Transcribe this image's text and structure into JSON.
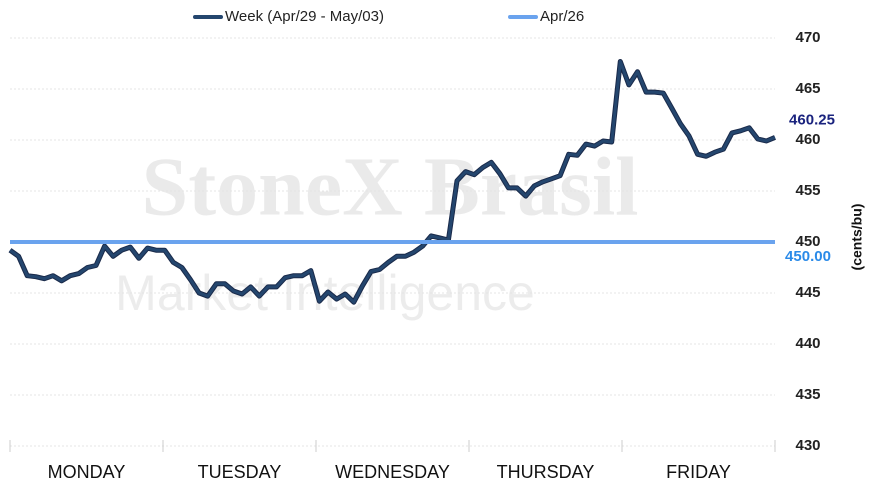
{
  "chart_data": {
    "type": "line",
    "x_axis_labels": [
      "MONDAY",
      "TUESDAY",
      "WEDNESDAY",
      "THURSDAY",
      "FRIDAY"
    ],
    "y_axis_label": "(cents/bu)",
    "watermark": [
      "StoneX Brasil",
      "Market Intelligence"
    ],
    "ylim": [
      430,
      470
    ],
    "yticks": [
      430,
      435,
      440,
      445,
      450,
      455,
      460,
      465,
      470
    ],
    "grid": true,
    "legend": "top",
    "series": [
      {
        "name": "Week (Apr/29 - May/03)",
        "color": "#24466e",
        "kind": "series",
        "values": [
          449.2,
          448.6,
          446.7,
          446.6,
          446.4,
          446.7,
          446.2,
          446.7,
          446.9,
          447.5,
          447.7,
          449.6,
          448.6,
          449.2,
          449.5,
          448.4,
          449.4,
          449.2,
          449.2,
          448.0,
          447.5,
          446.3,
          445.0,
          444.7,
          445.9,
          445.9,
          445.2,
          444.9,
          445.6,
          444.7,
          445.6,
          445.6,
          446.5,
          446.7,
          446.7,
          447.2,
          444.2,
          445.1,
          444.4,
          444.9,
          444.1,
          445.7,
          447.1,
          447.3,
          448.0,
          448.6,
          448.6,
          449.0,
          449.6,
          450.6,
          450.4,
          450.2,
          456.0,
          456.9,
          456.6,
          457.3,
          457.8,
          456.7,
          455.3,
          455.3,
          454.5,
          455.5,
          455.9,
          456.2,
          456.5,
          458.6,
          458.5,
          459.6,
          459.4,
          459.9,
          459.8,
          467.7,
          465.4,
          466.7,
          464.7,
          464.7,
          464.6,
          463.1,
          461.6,
          460.4,
          458.6,
          458.4,
          458.8,
          459.1,
          460.7,
          460.9,
          461.2,
          460.1,
          459.9,
          460.25
        ]
      },
      {
        "name": "Apr/26",
        "color": "#6aa3ee",
        "kind": "reference",
        "values": [
          450
        ],
        "value_labels": [
          "450.00"
        ]
      }
    ]
  }
}
